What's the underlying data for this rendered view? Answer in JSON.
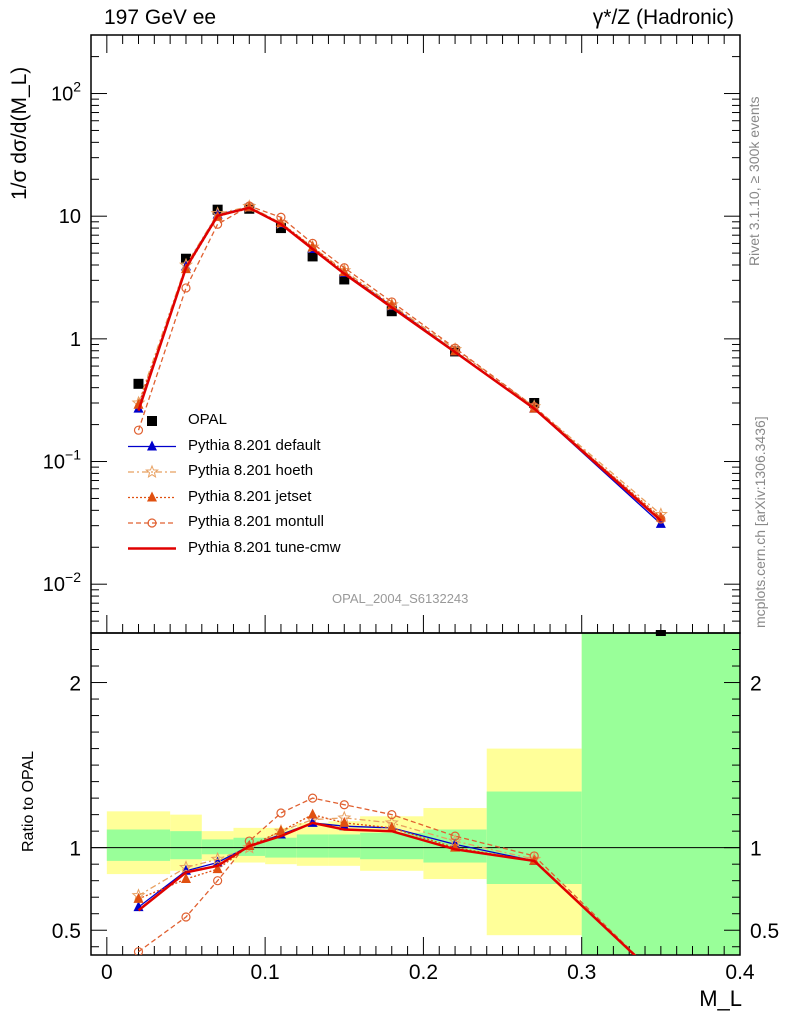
{
  "header": {
    "left": "197 GeV ee",
    "right": "γ*/Z (Hadronic)"
  },
  "side_text": {
    "rivet": "Rivet 3.1.10, ≥ 300k events",
    "mcplots": "mcplots.cern.ch [arXiv:1306.3436]"
  },
  "watermark": "OPAL_2004_S6132243",
  "colors": {
    "data": "#000000",
    "default": "#0000cc",
    "hoeth": "#e8a060",
    "jetset": "#e05010",
    "montull": "#e06030",
    "cmw": "#e00000",
    "band_green": "#99ff99",
    "band_yellow": "#ffff99"
  },
  "chart_data": [
    {
      "type": "line",
      "ylabel": "1/σ dσ/d(M_L)",
      "yscale": "log",
      "ylim": [
        0.004,
        300
      ],
      "xlim": [
        -0.01,
        0.4
      ],
      "yticks": [
        {
          "value": 0.01,
          "label": "10⁻²"
        },
        {
          "value": 0.1,
          "label": "10⁻¹"
        },
        {
          "value": 1,
          "label": "1"
        },
        {
          "value": 10,
          "label": "10"
        },
        {
          "value": 100,
          "label": "10²"
        }
      ],
      "legend_position": "lower-left",
      "series": [
        {
          "name": "OPAL",
          "key": "data",
          "marker": "square",
          "x": [
            0.02,
            0.05,
            0.07,
            0.09,
            0.11,
            0.13,
            0.15,
            0.18,
            0.22,
            0.27,
            0.35
          ],
          "y": [
            0.43,
            4.5,
            11.3,
            11.5,
            8.0,
            4.7,
            3.05,
            1.68,
            0.79,
            0.3,
            0.0038
          ]
        },
        {
          "name": "Pythia 8.201 default",
          "key": "default",
          "marker": "triangle",
          "x": [
            0.02,
            0.05,
            0.07,
            0.09,
            0.11,
            0.13,
            0.15,
            0.18,
            0.22,
            0.27,
            0.35
          ],
          "y": [
            0.27,
            3.9,
            10.3,
            11.8,
            8.7,
            5.4,
            3.45,
            1.85,
            0.79,
            0.27,
            0.031
          ]
        },
        {
          "name": "Pythia 8.201 hoeth",
          "key": "hoeth",
          "marker": "star",
          "x": [
            0.02,
            0.05,
            0.07,
            0.09,
            0.11,
            0.13,
            0.15,
            0.18,
            0.22,
            0.27,
            0.35
          ],
          "y": [
            0.3,
            4.0,
            10.5,
            12.0,
            8.8,
            5.6,
            3.6,
            1.9,
            0.82,
            0.28,
            0.037
          ]
        },
        {
          "name": "Pythia 8.201 jetset",
          "key": "jetset",
          "marker": "triangle",
          "x": [
            0.02,
            0.05,
            0.07,
            0.09,
            0.11,
            0.13,
            0.15,
            0.18,
            0.22,
            0.27,
            0.35
          ],
          "y": [
            0.29,
            3.7,
            9.9,
            11.8,
            8.8,
            5.6,
            3.5,
            1.87,
            0.79,
            0.27,
            0.035
          ]
        },
        {
          "name": "Pythia 8.201 montull",
          "key": "montull",
          "marker": "circle-open",
          "x": [
            0.02,
            0.05,
            0.07,
            0.09,
            0.11,
            0.13,
            0.15,
            0.18,
            0.22,
            0.27,
            0.35
          ],
          "y": [
            0.18,
            2.6,
            8.6,
            12.1,
            9.8,
            6.0,
            3.8,
            2.0,
            0.84,
            0.28,
            0.034
          ]
        },
        {
          "name": "Pythia 8.201 tune-cmw",
          "key": "cmw",
          "marker": "none",
          "x": [
            0.02,
            0.05,
            0.07,
            0.09,
            0.11,
            0.13,
            0.15,
            0.18,
            0.22,
            0.27,
            0.35
          ],
          "y": [
            0.26,
            3.8,
            10.1,
            11.7,
            8.6,
            5.4,
            3.4,
            1.8,
            0.78,
            0.27,
            0.033
          ]
        }
      ]
    },
    {
      "type": "line",
      "ylabel": "Ratio to OPAL",
      "xlabel": "M_L",
      "ylim": [
        0.35,
        2.3
      ],
      "xlim": [
        -0.01,
        0.4
      ],
      "yticks": [
        {
          "value": 0.5,
          "label": "0.5"
        },
        {
          "value": 1,
          "label": "1"
        },
        {
          "value": 2,
          "label": "2"
        }
      ],
      "xticks": [
        {
          "value": 0,
          "label": "0"
        },
        {
          "value": 0.1,
          "label": "0.1"
        },
        {
          "value": 0.2,
          "label": "0.2"
        },
        {
          "value": 0.3,
          "label": "0.3"
        },
        {
          "value": 0.4,
          "label": "0.4"
        }
      ],
      "bands": [
        {
          "x0": 0.0,
          "x1": 0.04,
          "yellow": [
            0.84,
            1.22
          ],
          "green": [
            0.92,
            1.11
          ]
        },
        {
          "x0": 0.04,
          "x1": 0.06,
          "yellow": [
            0.86,
            1.2
          ],
          "green": [
            0.93,
            1.1
          ]
        },
        {
          "x0": 0.06,
          "x1": 0.08,
          "yellow": [
            0.92,
            1.1
          ],
          "green": [
            0.96,
            1.05
          ]
        },
        {
          "x0": 0.08,
          "x1": 0.1,
          "yellow": [
            0.91,
            1.12
          ],
          "green": [
            0.95,
            1.06
          ]
        },
        {
          "x0": 0.1,
          "x1": 0.12,
          "yellow": [
            0.9,
            1.12
          ],
          "green": [
            0.94,
            1.06
          ]
        },
        {
          "x0": 0.12,
          "x1": 0.14,
          "yellow": [
            0.89,
            1.15
          ],
          "green": [
            0.94,
            1.08
          ]
        },
        {
          "x0": 0.14,
          "x1": 0.16,
          "yellow": [
            0.89,
            1.16
          ],
          "green": [
            0.94,
            1.08
          ]
        },
        {
          "x0": 0.16,
          "x1": 0.2,
          "yellow": [
            0.86,
            1.19
          ],
          "green": [
            0.93,
            1.09
          ]
        },
        {
          "x0": 0.2,
          "x1": 0.24,
          "yellow": [
            0.81,
            1.24
          ],
          "green": [
            0.91,
            1.11
          ]
        },
        {
          "x0": 0.24,
          "x1": 0.3,
          "yellow": [
            0.47,
            1.6
          ],
          "green": [
            0.78,
            1.34
          ]
        },
        {
          "x0": 0.3,
          "x1": 0.4,
          "yellow": [
            0.35,
            2.3
          ],
          "green": [
            0.35,
            2.3
          ]
        }
      ],
      "series": [
        {
          "name": "Pythia 8.201 default",
          "key": "default",
          "marker": "triangle",
          "x": [
            0.02,
            0.05,
            0.07,
            0.09,
            0.11,
            0.13,
            0.15,
            0.18,
            0.22,
            0.27,
            0.35
          ],
          "y": [
            0.64,
            0.86,
            0.91,
            1.01,
            1.08,
            1.15,
            1.13,
            1.12,
            1.02,
            0.92,
            0.2
          ]
        },
        {
          "name": "Pythia 8.201 hoeth",
          "key": "hoeth",
          "marker": "star",
          "x": [
            0.02,
            0.05,
            0.07,
            0.09,
            0.11,
            0.13,
            0.15,
            0.18,
            0.22,
            0.27,
            0.35
          ],
          "y": [
            0.71,
            0.88,
            0.93,
            1.0,
            1.1,
            1.17,
            1.18,
            1.15,
            1.04,
            0.93,
            0.2
          ]
        },
        {
          "name": "Pythia 8.201 jetset",
          "key": "jetset",
          "marker": "triangle",
          "x": [
            0.02,
            0.05,
            0.07,
            0.09,
            0.11,
            0.13,
            0.15,
            0.18,
            0.22,
            0.27,
            0.35
          ],
          "y": [
            0.69,
            0.81,
            0.87,
            1.01,
            1.1,
            1.2,
            1.15,
            1.12,
            1.0,
            0.92,
            0.2
          ]
        },
        {
          "name": "Pythia 8.201 montull",
          "key": "montull",
          "marker": "circle-open",
          "x": [
            0.02,
            0.05,
            0.07,
            0.09,
            0.11,
            0.13,
            0.15,
            0.18,
            0.22,
            0.27,
            0.35
          ],
          "y": [
            0.37,
            0.58,
            0.8,
            1.04,
            1.21,
            1.3,
            1.26,
            1.2,
            1.07,
            0.95,
            0.2
          ]
        },
        {
          "name": "Pythia 8.201 tune-cmw",
          "key": "cmw",
          "marker": "none",
          "x": [
            0.02,
            0.05,
            0.07,
            0.09,
            0.11,
            0.13,
            0.15,
            0.18,
            0.22,
            0.27,
            0.35
          ],
          "y": [
            0.62,
            0.85,
            0.89,
            1.01,
            1.07,
            1.15,
            1.11,
            1.1,
            0.99,
            0.92,
            0.2
          ]
        }
      ]
    }
  ]
}
